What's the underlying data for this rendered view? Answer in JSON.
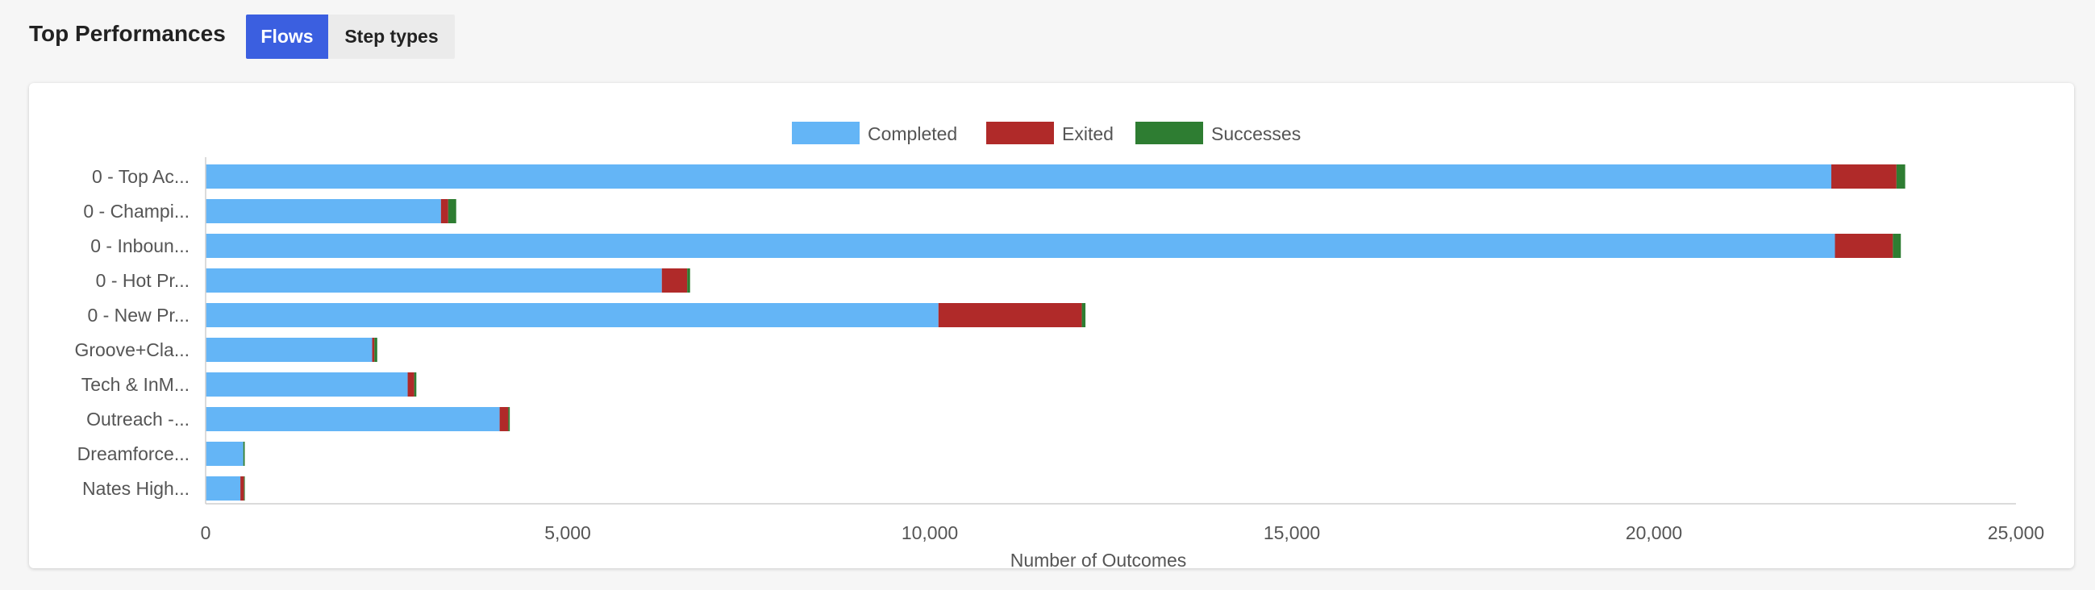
{
  "header": {
    "title": "Top Performances",
    "tabs": [
      {
        "label": "Flows",
        "active": true
      },
      {
        "label": "Step types",
        "active": false
      }
    ]
  },
  "colors": {
    "completed": "#64b5f6",
    "exited": "#b02a29",
    "successes": "#2e7d32",
    "active_tab": "#3b5fe0"
  },
  "chart_data": {
    "type": "bar",
    "orientation": "horizontal",
    "stacked": true,
    "categories": [
      "0 - Top Ac...",
      "0 - Champi...",
      "0 - Inboun...",
      "0 - Hot Pr...",
      "0 - New Pr...",
      "Groove+Cla...",
      "Tech & InM...",
      "Outreach -...",
      "Dreamforce...",
      "Nates High..."
    ],
    "series": [
      {
        "name": "Completed",
        "values": [
          22450,
          3250,
          22500,
          6300,
          10120,
          2300,
          2790,
          4060,
          520,
          480
        ]
      },
      {
        "name": "Exited",
        "values": [
          900,
          100,
          800,
          350,
          1980,
          30,
          90,
          120,
          0,
          50
        ]
      },
      {
        "name": "Successes",
        "values": [
          120,
          110,
          110,
          40,
          50,
          40,
          30,
          20,
          20,
          10
        ]
      }
    ],
    "xlabel": "Number of Outcomes",
    "xlim": [
      0,
      25000
    ],
    "xticks": [
      0,
      5000,
      10000,
      15000,
      20000,
      25000
    ],
    "xtick_labels": [
      "0",
      "5,000",
      "10,000",
      "15,000",
      "20,000",
      "25,000"
    ],
    "legend_position": "top-center",
    "grid": false
  }
}
